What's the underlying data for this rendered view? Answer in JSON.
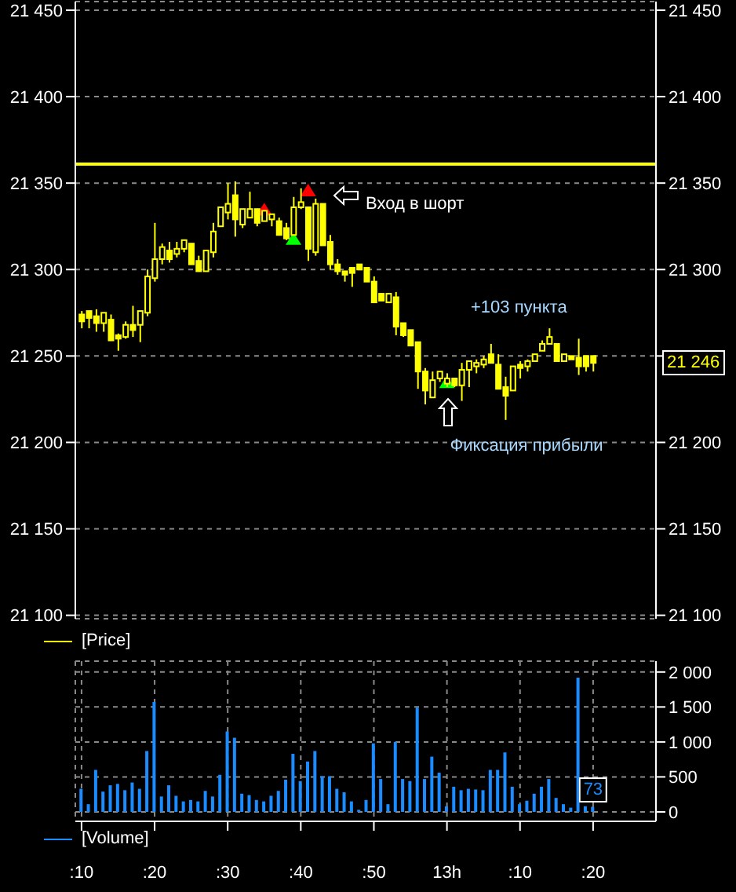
{
  "chart_data": [
    {
      "type": "candlestick",
      "categories": [
        ":10",
        null,
        null,
        null,
        null,
        null,
        null,
        null,
        null,
        null,
        ":20",
        null,
        null,
        null,
        null,
        null,
        null,
        null,
        null,
        null,
        ":30",
        null,
        null,
        null,
        null,
        null,
        null,
        null,
        null,
        null,
        ":40",
        null,
        null,
        null,
        null,
        null,
        null,
        null,
        null,
        null,
        ":50",
        null,
        null,
        null,
        null,
        null,
        null,
        null,
        null,
        null,
        "13h",
        null,
        null,
        null,
        null,
        null,
        null,
        null,
        null,
        null,
        ":10",
        null,
        null,
        null,
        null,
        null,
        null,
        null,
        null,
        null,
        ":20"
      ],
      "series": [
        {
          "name": "[Price]",
          "type": "candlestick",
          "color": "#ffff00",
          "ohlc": [
            [
              21274,
              21276,
              21266,
              21270
            ],
            [
              21276,
              21276,
              21266,
              21272
            ],
            [
              21273,
              21277,
              21264,
              21269
            ],
            [
              21269,
              21275,
              21264,
              21275
            ],
            [
              21271,
              21274,
              21259,
              21259
            ],
            [
              21262,
              21263,
              21253,
              21260
            ],
            [
              21261,
              21270,
              21260,
              21268
            ],
            [
              21268,
              21279,
              21261,
              21265
            ],
            [
              21268,
              21276,
              21258,
              21276
            ],
            [
              21275,
              21300,
              21273,
              21296
            ],
            [
              21295,
              21327,
              21293,
              21306
            ],
            [
              21306,
              21315,
              21303,
              21313
            ],
            [
              21311,
              21316,
              21304,
              21306
            ],
            [
              21309,
              21316,
              21307,
              21312
            ],
            [
              21312,
              21317,
              21310,
              21317
            ],
            [
              21315,
              21315,
              21303,
              21303
            ],
            [
              21305,
              21308,
              21299,
              21299
            ],
            [
              21299,
              21311,
              21299,
              21311
            ],
            [
              21310,
              21327,
              21307,
              21322
            ],
            [
              21325,
              21336,
              21325,
              21336
            ],
            [
              21333,
              21350,
              21329,
              21338
            ],
            [
              21343,
              21351,
              21319,
              21329
            ],
            [
              21326,
              21335,
              21324,
              21335
            ],
            [
              21330,
              21345,
              21330,
              21335
            ],
            [
              21335,
              21335,
              21325,
              21327
            ],
            [
              21328,
              21334,
              21328,
              21334
            ],
            [
              21329,
              21332,
              21325,
              21332
            ],
            [
              21328,
              21330,
              21320,
              21320
            ],
            [
              21324,
              21327,
              21317,
              21318
            ],
            [
              21320,
              21342,
              21320,
              21336
            ],
            [
              21336,
              21347,
              21335,
              21339
            ],
            [
              21336,
              21336,
              21305,
              21312
            ],
            [
              21310,
              21341,
              21308,
              21338
            ],
            [
              21338,
              21338,
              21314,
              21314
            ],
            [
              21316,
              21320,
              21300,
              21303
            ],
            [
              21303,
              21306,
              21297,
              21299
            ],
            [
              21299,
              21299,
              21293,
              21297
            ],
            [
              21301,
              21301,
              21290,
              21298
            ],
            [
              21303,
              21303,
              21300,
              21300
            ],
            [
              21301,
              21301,
              21293,
              21293
            ],
            [
              21293,
              21296,
              21281,
              21281
            ],
            [
              21286,
              21286,
              21282,
              21282
            ],
            [
              21281,
              21286,
              21281,
              21286
            ],
            [
              21284,
              21287,
              21262,
              21267
            ],
            [
              21269,
              21269,
              21261,
              21262
            ],
            [
              21265,
              21265,
              21256,
              21256
            ],
            [
              21258,
              21258,
              21231,
              21241
            ],
            [
              21241,
              21243,
              21222,
              21230
            ],
            [
              21226,
              21241,
              21226,
              21236
            ],
            [
              21237,
              21241,
              21235,
              21241
            ],
            [
              21234,
              21240,
              21232,
              21237
            ],
            [
              21237,
              21237,
              21232,
              21233
            ],
            [
              21233,
              21246,
              21224,
              21242
            ],
            [
              21242,
              21247,
              21232,
              21247
            ],
            [
              21244,
              21248,
              21240,
              21246
            ],
            [
              21245,
              21250,
              21243,
              21248
            ],
            [
              21251,
              21257,
              21246,
              21246
            ],
            [
              21245,
              21251,
              21231,
              21231
            ],
            [
              21232,
              21238,
              21213,
              21227
            ],
            [
              21230,
              21244,
              21230,
              21244
            ],
            [
              21245,
              21247,
              21237,
              21243
            ],
            [
              21244,
              21248,
              21241,
              21247
            ],
            [
              21247,
              21251,
              21247,
              21251
            ],
            [
              21253,
              21259,
              21253,
              21257
            ],
            [
              21257,
              21266,
              21257,
              21261
            ],
            [
              21257,
              21257,
              21247,
              21247
            ],
            [
              21247,
              21251,
              21247,
              21251
            ],
            [
              21250,
              21250,
              21248,
              21248
            ],
            [
              21249,
              21260,
              21239,
              21244
            ],
            [
              21250,
              21250,
              21241,
              21244
            ],
            [
              21250,
              21250,
              21241,
              21246
            ]
          ],
          "value_labels": [
            null,
            null,
            null,
            null,
            null,
            null,
            null,
            null,
            null,
            null,
            null,
            null,
            null,
            null,
            null,
            null,
            null,
            null,
            null,
            null,
            null,
            null,
            null,
            null,
            null,
            null,
            null,
            null,
            null,
            null,
            null,
            null,
            null,
            null,
            null,
            null,
            null,
            null,
            null,
            null,
            null,
            null,
            null,
            null,
            null,
            null,
            null,
            null,
            null,
            null,
            null,
            null,
            null,
            null,
            null,
            null,
            null,
            null,
            null,
            null,
            null,
            null,
            null,
            null,
            null,
            null,
            null,
            null,
            null,
            null,
            "21 246"
          ]
        },
        {
          "type": "scatter",
          "color": "#ff0000",
          "marker": "triangle",
          "values": [
            null,
            null,
            null,
            null,
            null,
            null,
            null,
            null,
            null,
            null,
            null,
            null,
            null,
            null,
            null,
            null,
            null,
            null,
            null,
            null,
            null,
            null,
            null,
            null,
            null,
            21335,
            null,
            null,
            null,
            null,
            null,
            21346,
            null,
            null,
            null,
            null,
            null,
            null,
            null,
            null,
            null,
            null,
            null,
            null,
            null,
            null,
            null,
            null,
            null,
            null,
            null,
            null,
            null,
            null,
            null,
            null,
            null,
            null,
            null,
            null,
            null,
            null,
            null,
            null,
            null,
            null,
            null,
            null,
            null,
            null,
            null
          ]
        },
        {
          "type": "scatter",
          "color": "#00ff00",
          "marker": "triangle",
          "values": [
            null,
            null,
            null,
            null,
            null,
            null,
            null,
            null,
            null,
            null,
            null,
            null,
            null,
            null,
            null,
            null,
            null,
            null,
            null,
            null,
            null,
            null,
            null,
            null,
            null,
            null,
            null,
            null,
            null,
            21318,
            null,
            null,
            null,
            null,
            null,
            null,
            null,
            null,
            null,
            null,
            null,
            null,
            null,
            null,
            null,
            null,
            null,
            null,
            null,
            null,
            21235,
            null,
            null,
            null,
            null,
            null,
            null,
            null,
            null,
            null,
            null,
            null,
            null,
            null,
            null,
            null,
            null,
            null,
            null,
            null,
            null
          ]
        }
      ],
      "ylim": [
        21098,
        21455
      ],
      "yticks": [
        {
          "value": 21100,
          "label": "21 100"
        },
        {
          "value": 21150,
          "label": "21 150"
        },
        {
          "value": 21200,
          "label": "21 200"
        },
        {
          "value": 21250,
          "label": "21 250"
        },
        {
          "value": 21300,
          "label": "21 300"
        },
        {
          "value": 21350,
          "label": "21 350"
        },
        {
          "value": 21400,
          "label": "21 400"
        },
        {
          "value": 21450,
          "label": "21 450"
        }
      ],
      "y2lim": [
        21098,
        21455
      ],
      "y2ticks": [
        {
          "value": 21100,
          "label": "21 100"
        },
        {
          "value": 21150,
          "label": "21 150"
        },
        {
          "value": 21200,
          "label": "21 200"
        },
        {
          "value": 21250,
          "label": null
        },
        {
          "value": 21300,
          "label": "21 300"
        },
        {
          "value": 21350,
          "label": "21 350"
        },
        {
          "value": 21400,
          "label": "21 400"
        },
        {
          "value": 21450,
          "label": "21 450"
        }
      ],
      "tick_labels": "y",
      "grid": true,
      "legend": "bottom left",
      "ref_lines": [
        {
          "axis": "y",
          "value": 21361,
          "color": "#ffff00"
        }
      ],
      "annotations": [
        "Вход в шорт",
        {
          "text": "Фиксация прибыли",
          "x": "13h",
          "y": 21232
        },
        "+103 пункта"
      ]
    },
    {
      "type": "bar",
      "categories": [
        ":10",
        null,
        null,
        null,
        null,
        null,
        null,
        null,
        null,
        null,
        ":20",
        null,
        null,
        null,
        null,
        null,
        null,
        null,
        null,
        null,
        ":30",
        null,
        null,
        null,
        null,
        null,
        null,
        null,
        null,
        null,
        ":40",
        null,
        null,
        null,
        null,
        null,
        null,
        null,
        null,
        null,
        ":50",
        null,
        null,
        null,
        null,
        null,
        null,
        null,
        null,
        null,
        "13h",
        null,
        null,
        null,
        null,
        null,
        null,
        null,
        null,
        null,
        ":10",
        null,
        null,
        null,
        null,
        null,
        null,
        null,
        null,
        null,
        ":20"
      ],
      "series": [
        {
          "name": "[Volume]",
          "color": "#1a8cff",
          "values": [
            330,
            110,
            600,
            290,
            380,
            400,
            310,
            420,
            330,
            870,
            1570,
            220,
            380,
            230,
            150,
            170,
            150,
            300,
            220,
            530,
            1150,
            1060,
            260,
            240,
            170,
            150,
            230,
            300,
            460,
            830,
            440,
            720,
            870,
            510,
            510,
            330,
            280,
            150,
            30,
            170,
            980,
            470,
            110,
            1000,
            470,
            440,
            1490,
            470,
            790,
            560,
            80,
            360,
            310,
            330,
            320,
            310,
            600,
            600,
            850,
            360,
            110,
            160,
            260,
            360,
            470,
            200,
            110,
            60,
            1920,
            80,
            73
          ],
          "value_labels": [
            null,
            null,
            null,
            null,
            null,
            null,
            null,
            null,
            null,
            null,
            null,
            null,
            null,
            null,
            null,
            null,
            null,
            null,
            null,
            null,
            null,
            null,
            null,
            null,
            null,
            null,
            null,
            null,
            null,
            null,
            null,
            null,
            null,
            null,
            null,
            null,
            null,
            null,
            null,
            null,
            null,
            null,
            null,
            null,
            null,
            null,
            null,
            null,
            null,
            null,
            null,
            null,
            null,
            null,
            null,
            null,
            null,
            null,
            null,
            null,
            null,
            null,
            null,
            null,
            null,
            null,
            null,
            null,
            null,
            null,
            "73"
          ]
        }
      ],
      "ylim": [
        -135,
        2155
      ],
      "yticks": [
        0,
        500,
        {
          "value": 1000,
          "label": "1 000"
        },
        {
          "value": 1500,
          "label": "1 500"
        },
        {
          "value": 2000,
          "label": "2 000"
        }
      ],
      "grid": true,
      "legend": "bottom left"
    }
  ]
}
